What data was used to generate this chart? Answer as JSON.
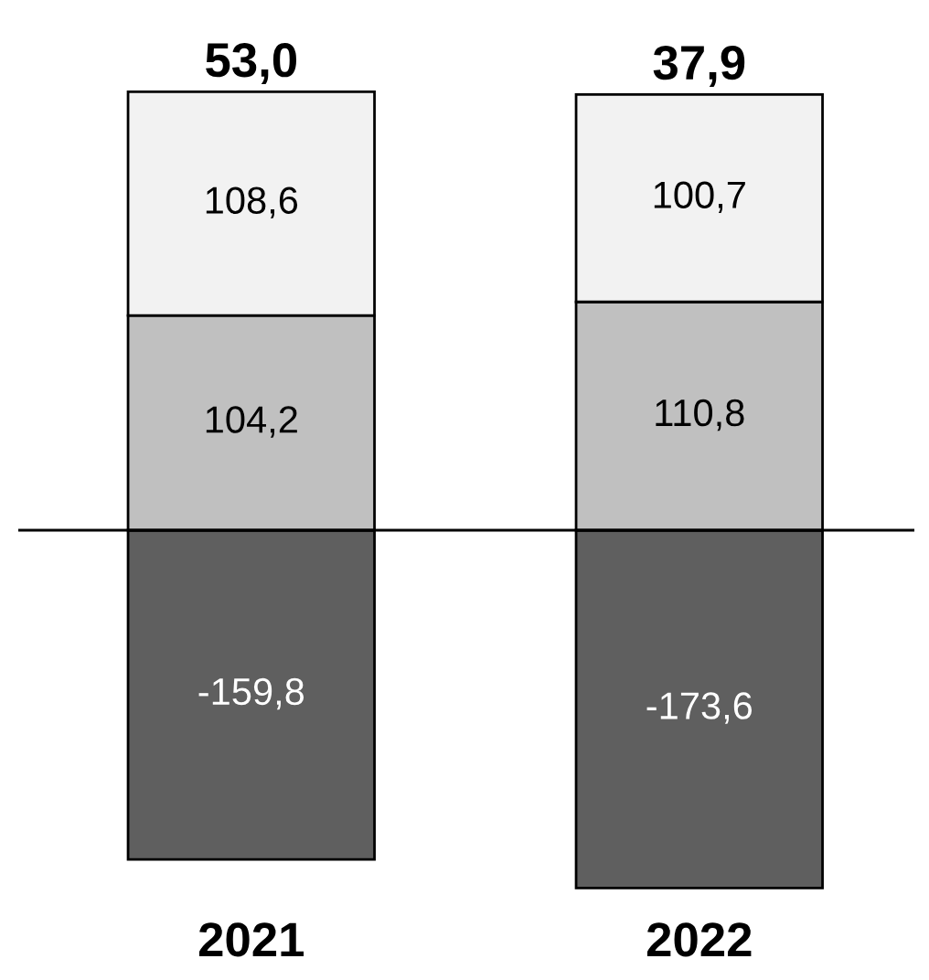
{
  "chart_data": {
    "type": "bar",
    "stacked": true,
    "categories": [
      "2021",
      "2022"
    ],
    "series": [
      {
        "color": "#5f5f5f",
        "values": [
          -159.8,
          -173.6
        ],
        "value_labels": [
          "-159,8",
          "-173,6"
        ]
      },
      {
        "color": "#c0c0c0",
        "values": [
          104.2,
          110.8
        ],
        "value_labels": [
          "104,2",
          "110,8"
        ]
      },
      {
        "color": "#f2f2f2",
        "values": [
          108.6,
          100.7
        ],
        "value_labels": [
          "108,6",
          "100,7"
        ]
      }
    ],
    "annotations": [
      {
        "text": "53,0",
        "x": "2021",
        "y": 212.8
      },
      {
        "text": "37,9",
        "x": "2022",
        "y": 211.5
      }
    ],
    "grid": false,
    "legend": false
  }
}
